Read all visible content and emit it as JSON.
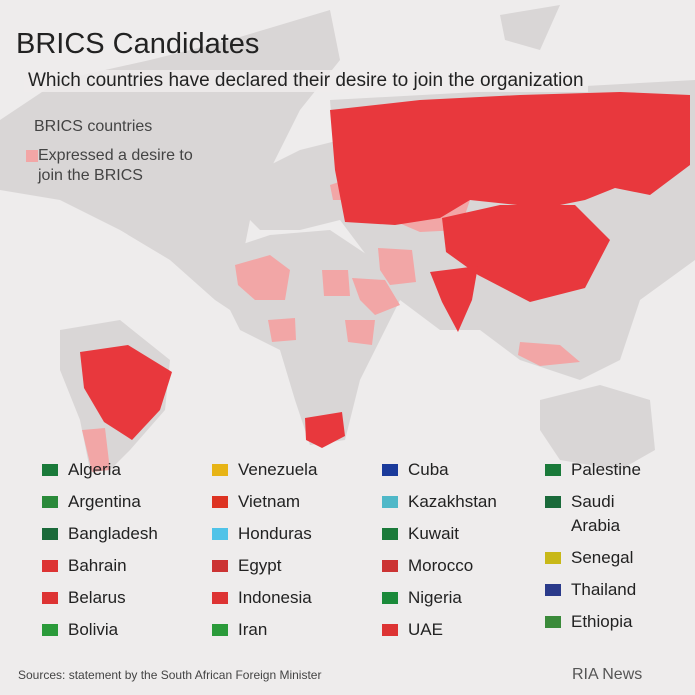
{
  "header": {
    "title": "BRICS Candidates",
    "subtitle": "Which countries have declared their desire to join the organization"
  },
  "legend": {
    "brics": "BRICS countries",
    "candidates": "Expressed a desire to join the BRICS"
  },
  "countries": [
    [
      "Algeria",
      "Argentina",
      "Bangladesh",
      "Bahrain",
      "Belarus",
      "Bolivia"
    ],
    [
      "Venezuela",
      "Vietnam",
      "Honduras",
      "Egypt",
      "Indonesia",
      "Iran"
    ],
    [
      "Cuba",
      "Kazakhstan",
      "Kuwait",
      "Morocco",
      "Nigeria",
      "UAE"
    ],
    [
      "Palestine",
      "Saudi Arabia",
      "Senegal",
      "Thailand",
      "Ethiopia"
    ]
  ],
  "footer": {
    "source": "Sources: statement by the South African Foreign Minister",
    "credit": "RIA News"
  }
}
